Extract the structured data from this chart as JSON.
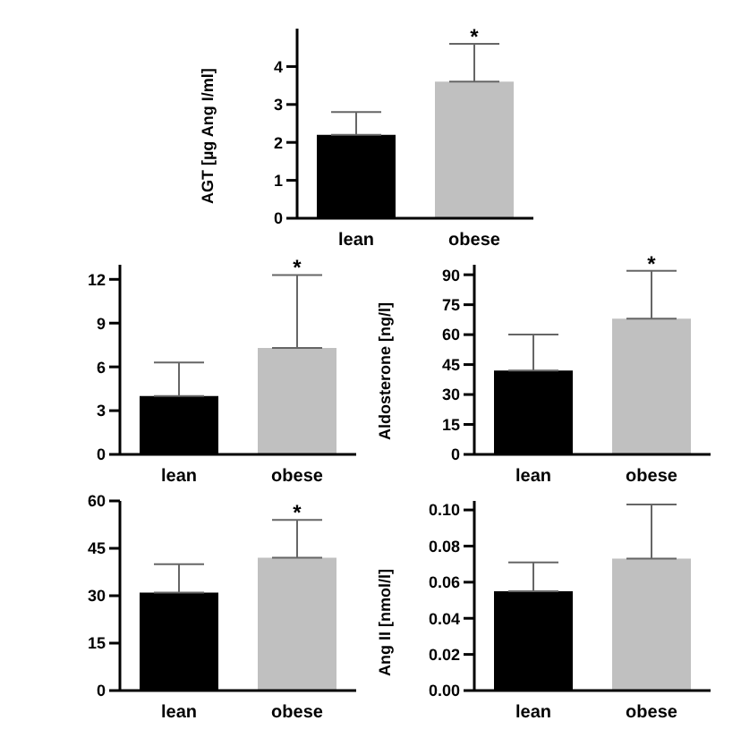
{
  "chart_data": [
    {
      "type": "bar",
      "ylabel": "AGT [µg Ang I/ml]",
      "categories": [
        "lean",
        "obese"
      ],
      "values": [
        2.2,
        3.6
      ],
      "colors": [
        "#000000",
        "#c0c0c0"
      ],
      "errors": [
        [
          2.2,
          2.8
        ],
        [
          3.6,
          4.6
        ]
      ],
      "ylim": [
        0,
        5
      ],
      "yticks": [
        0,
        1,
        2,
        3,
        4
      ],
      "annotations": [
        {
          "text": "*",
          "x": "obese",
          "y": 4.6
        }
      ]
    },
    {
      "type": "bar",
      "categories": [
        "lean",
        "obese"
      ],
      "values": [
        4.0,
        7.3
      ],
      "colors": [
        "#000000",
        "#c0c0c0"
      ],
      "errors": [
        [
          4.0,
          6.3
        ],
        [
          7.3,
          12.3
        ]
      ],
      "ylim": [
        0,
        13
      ],
      "yticks": [
        0,
        3,
        6,
        9,
        12
      ],
      "annotations": [
        {
          "text": "*",
          "x": "obese",
          "y": 12.3
        }
      ]
    },
    {
      "type": "bar",
      "ylabel": "Aldosterone [ng/l]",
      "categories": [
        "lean",
        "obese"
      ],
      "values": [
        42,
        68
      ],
      "colors": [
        "#000000",
        "#c0c0c0"
      ],
      "errors": [
        [
          42,
          60
        ],
        [
          68,
          92
        ]
      ],
      "ylim": [
        0,
        95
      ],
      "yticks": [
        0,
        15,
        30,
        45,
        60,
        75,
        90
      ],
      "annotations": [
        {
          "text": "*",
          "x": "obese",
          "y": 92
        }
      ]
    },
    {
      "type": "bar",
      "categories": [
        "lean",
        "obese"
      ],
      "values": [
        31,
        42
      ],
      "colors": [
        "#000000",
        "#c0c0c0"
      ],
      "errors": [
        [
          31,
          40
        ],
        [
          42,
          54
        ]
      ],
      "ylim": [
        0,
        60
      ],
      "yticks": [
        0,
        15,
        30,
        45,
        60
      ],
      "annotations": [
        {
          "text": "*",
          "x": "obese",
          "y": 54
        }
      ]
    },
    {
      "type": "bar",
      "ylabel": "Ang II [nmol/l]",
      "categories": [
        "lean",
        "obese"
      ],
      "values": [
        0.055,
        0.073
      ],
      "colors": [
        "#000000",
        "#c0c0c0"
      ],
      "errors": [
        [
          0.055,
          0.071
        ],
        [
          0.073,
          0.103
        ]
      ],
      "ylim": [
        0,
        0.105
      ],
      "yticks": [
        {
          "value": 0,
          "label": "0.00"
        },
        {
          "value": 0.02,
          "label": "0.02"
        },
        {
          "value": 0.04,
          "label": "0.04"
        },
        {
          "value": 0.06,
          "label": "0.06"
        },
        {
          "value": 0.08,
          "label": "0.08"
        },
        {
          "value": 0.1,
          "label": "0.10"
        }
      ]
    }
  ]
}
